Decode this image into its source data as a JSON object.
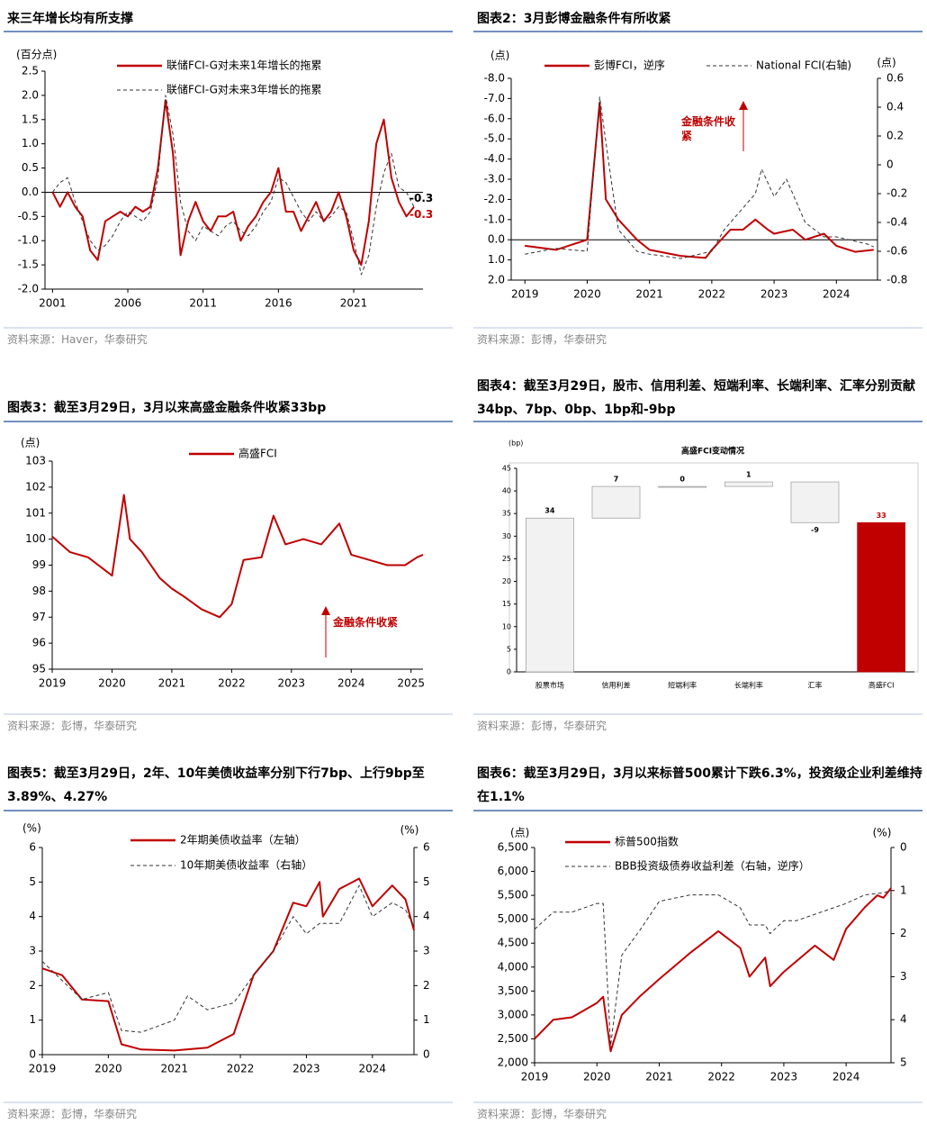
{
  "chart_data": [
    {
      "type": "line",
      "title": "来三年增长均有所支撑",
      "source": "资料来源：Haver，华泰研究",
      "ylabel": "(百分点)",
      "xlim": [
        2000.5,
        2025.6
      ],
      "xticks": [
        2001,
        2006,
        2011,
        2016,
        2021
      ],
      "ylim": [
        -2,
        2.5
      ],
      "yticks": [
        2.5,
        {
          "value": 2,
          "label": "2.0"
        },
        1.5,
        {
          "value": 1,
          "label": "1.0"
        },
        0.5,
        {
          "value": 0,
          "label": "0.0"
        },
        -0.5,
        {
          "value": -1,
          "label": "-1.0"
        },
        -1.5,
        {
          "value": -2,
          "label": "-2.0"
        }
      ],
      "zero_line": true,
      "x": [
        2001,
        2001.5,
        2002,
        2002.5,
        2003,
        2003.5,
        2004,
        2004.5,
        2005,
        2005.5,
        2006,
        2006.5,
        2007,
        2007.5,
        2008,
        2008.5,
        2009,
        2009.5,
        2010,
        2010.5,
        2011,
        2011.5,
        2012,
        2012.5,
        2013,
        2013.5,
        2014,
        2014.5,
        2015,
        2015.5,
        2016,
        2016.5,
        2017,
        2017.5,
        2018,
        2018.5,
        2019,
        2019.5,
        2020,
        2020.5,
        2021,
        2021.5,
        2022,
        2022.5,
        2023,
        2023.5,
        2024,
        2024.5,
        2025
      ],
      "series": [
        {
          "name": "联储FCI-G对未来1年增长的拖累",
          "color": "#c00000",
          "style": "solid",
          "values": [
            0,
            -0.3,
            0,
            -0.3,
            -0.5,
            -1.2,
            -1.4,
            -0.6,
            -0.5,
            -0.4,
            -0.5,
            -0.3,
            -0.4,
            -0.3,
            0.5,
            1.9,
            0.8,
            -1.3,
            -0.6,
            -0.2,
            -0.6,
            -0.8,
            -0.5,
            -0.5,
            -0.4,
            -1.0,
            -0.7,
            -0.5,
            -0.2,
            0,
            0.5,
            -0.4,
            -0.4,
            -0.8,
            -0.5,
            -0.2,
            -0.6,
            -0.4,
            0,
            -0.5,
            -1.2,
            -1.5,
            -0.6,
            1.0,
            1.5,
            0.3,
            -0.2,
            -0.5,
            -0.3
          ]
        },
        {
          "name": "联储FCI-G对未来3年增长的拖累",
          "color": "#333333",
          "style": "dashed",
          "values": [
            0,
            0.2,
            0.3,
            -0.2,
            -0.6,
            -1.0,
            -1.2,
            -1.1,
            -0.9,
            -0.6,
            -0.4,
            -0.5,
            -0.6,
            -0.4,
            0.3,
            2.0,
            1.2,
            -0.2,
            -0.8,
            -1.0,
            -0.7,
            -0.8,
            -0.9,
            -0.7,
            -0.6,
            -0.8,
            -0.9,
            -0.7,
            -0.4,
            -0.2,
            0.3,
            0.2,
            -0.1,
            -0.4,
            -0.6,
            -0.4,
            -0.6,
            -0.5,
            -0.3,
            -0.4,
            -1.0,
            -1.7,
            -1.3,
            -0.3,
            0.4,
            0.8,
            0.1,
            0,
            -0.3
          ]
        }
      ],
      "annotations": [
        {
          "text": "-0.3",
          "color": "#000000"
        },
        {
          "text": "-0.3",
          "color": "#c00000"
        }
      ]
    },
    {
      "type": "line",
      "title": "图表2：3月彭博金融条件有所收紧",
      "source": "资料来源：彭博，华泰研究",
      "ylabel": "(点)",
      "y2label": "(点)",
      "xlim": [
        2018.78,
        2024.66
      ],
      "xticks": [
        2019,
        2020,
        2021,
        2022,
        2023,
        2024
      ],
      "ylim": [
        -8,
        2
      ],
      "yreverse": true,
      "yticks": [
        {
          "value": -8,
          "label": "-8.0"
        },
        {
          "value": -7,
          "label": "-7.0"
        },
        {
          "value": -6,
          "label": "-6.0"
        },
        {
          "value": -5,
          "label": "-5.0"
        },
        {
          "value": -4,
          "label": "-4.0"
        },
        {
          "value": -3,
          "label": "-3.0"
        },
        {
          "value": -2,
          "label": "-2.0"
        },
        {
          "value": -1,
          "label": "-1.0"
        },
        {
          "value": 0,
          "label": "0.0"
        },
        {
          "value": 1,
          "label": "1.0"
        },
        {
          "value": 2,
          "label": "2.0"
        }
      ],
      "y2lim": [
        -0.8,
        0.6
      ],
      "y2ticks": [
        0.6,
        0.4,
        0.2,
        0,
        -0.2,
        -0.4,
        -0.6,
        -0.8
      ],
      "zero_line": true,
      "series": [
        {
          "name": "彭博FCI，逆序",
          "color": "#c00000",
          "style": "solid",
          "x": [
            2019,
            2019.5,
            2020,
            2020.2,
            2020.3,
            2020.5,
            2020.8,
            2021,
            2021.5,
            2021.9,
            2022,
            2022.3,
            2022.5,
            2022.7,
            2022.9,
            2023,
            2023.3,
            2023.5,
            2023.8,
            2024,
            2024.3,
            2024.6
          ],
          "values": [
            0.3,
            0.5,
            0,
            -6.8,
            -2.0,
            -1.0,
            0,
            0.5,
            0.8,
            0.9,
            0.5,
            -0.5,
            -0.5,
            -1.0,
            -0.5,
            -0.3,
            -0.5,
            0,
            -0.3,
            0.3,
            0.6,
            0.5
          ]
        },
        {
          "name": "National FCI(右轴)",
          "color": "#333333",
          "style": "dashed",
          "axis": "y2",
          "x": [
            2019,
            2019.5,
            2020,
            2020.2,
            2020.35,
            2020.5,
            2020.8,
            2021,
            2021.5,
            2022,
            2022.2,
            2022.5,
            2022.7,
            2022.8,
            2023,
            2023.2,
            2023.5,
            2023.8,
            2024,
            2024.5,
            2024.6
          ],
          "values": [
            -0.62,
            -0.58,
            -0.6,
            0.47,
            0,
            -0.45,
            -0.6,
            -0.62,
            -0.65,
            -0.6,
            -0.45,
            -0.3,
            -0.2,
            -0.03,
            -0.22,
            -0.1,
            -0.4,
            -0.5,
            -0.5,
            -0.55,
            -0.57
          ]
        }
      ],
      "annotations": [
        {
          "text": "金融条件收紧",
          "color": "#c00000"
        }
      ]
    },
    {
      "type": "line",
      "title": "图表3：截至3月29日，3月以来高盛金融条件收紧33bp",
      "source": "资料来源：彭博，华泰研究",
      "ylabel": "(点)",
      "xlim": [
        2019,
        2025.2
      ],
      "xticks": [
        2019,
        2020,
        2021,
        2022,
        2023,
        2024,
        2025
      ],
      "ylim": [
        95,
        103
      ],
      "yticks": [
        95,
        96,
        97,
        98,
        99,
        100,
        101,
        102,
        103
      ],
      "series": [
        {
          "name": "高盛FCI",
          "color": "#c00000",
          "style": "solid",
          "x": [
            2019,
            2019.3,
            2019.6,
            2020,
            2020.2,
            2020.3,
            2020.5,
            2020.8,
            2021,
            2021.2,
            2021.5,
            2021.8,
            2022,
            2022.2,
            2022.5,
            2022.7,
            2022.9,
            2023.2,
            2023.5,
            2023.8,
            2024,
            2024.3,
            2024.6,
            2024.9,
            2025.1,
            2025.2
          ],
          "values": [
            100.1,
            99.5,
            99.3,
            98.6,
            101.7,
            100,
            99.5,
            98.5,
            98.1,
            97.8,
            97.3,
            97.0,
            97.5,
            99.2,
            99.3,
            100.9,
            99.8,
            100.0,
            99.8,
            100.6,
            99.4,
            99.2,
            99.0,
            99.0,
            99.3,
            99.4
          ]
        }
      ],
      "annotations": [
        {
          "text": "金融条件收紧",
          "color": "#c00000"
        }
      ]
    },
    {
      "type": "waterfall",
      "title": "图表4：截至3月29日，股市、信用利差、短端利率、长端利率、汇率分别贡献34bp、7bp、0bp、1bp和-9bp",
      "source": "资料来源：彭博，华泰研究",
      "subtitle": "高盛FCI变动情况",
      "ylabel": "(bp)",
      "categories": [
        "股票市场",
        "信用利差",
        "短端利率",
        "长端利率",
        "汇率",
        "高盛FCI"
      ],
      "values": [
        34,
        7,
        0,
        1,
        -9,
        33
      ],
      "ylim": [
        0,
        45
      ],
      "yticks": [
        0,
        5,
        10,
        15,
        20,
        25,
        30,
        35,
        40,
        45
      ],
      "color": "#f2f2f2",
      "total_color": "#c00000"
    },
    {
      "type": "line",
      "title": "图表5：截至3月29日，2年、10年美债收益率分别下行7bp、上行9bp至3.89%、4.27%",
      "source": "资料来源：彭博，华泰研究",
      "ylabel": "(%)",
      "y2label": "(%)",
      "xlim": [
        2019,
        2024.63
      ],
      "xticks": [
        2019,
        2020,
        2021,
        2022,
        2023,
        2024
      ],
      "ylim": [
        0,
        6
      ],
      "yticks": [
        0,
        1,
        2,
        3,
        4,
        5,
        6
      ],
      "y2lim": [
        0,
        6
      ],
      "y2ticks": [
        0,
        1,
        2,
        3,
        4,
        5,
        6
      ],
      "series": [
        {
          "name": "2年期美债收益率（左轴）",
          "color": "#c00000",
          "style": "solid",
          "x": [
            2019,
            2019.3,
            2019.6,
            2020,
            2020.2,
            2020.5,
            2021,
            2021.5,
            2021.9,
            2022.2,
            2022.5,
            2022.8,
            2023,
            2023.2,
            2023.25,
            2023.5,
            2023.8,
            2024,
            2024.3,
            2024.5,
            2024.63
          ],
          "values": [
            2.5,
            2.3,
            1.6,
            1.55,
            0.3,
            0.15,
            0.12,
            0.2,
            0.6,
            2.3,
            3.0,
            4.4,
            4.3,
            5.0,
            4.0,
            4.8,
            5.1,
            4.3,
            4.9,
            4.5,
            3.6
          ]
        },
        {
          "name": "10年期美债收益率（右轴）",
          "color": "#333333",
          "style": "dashed",
          "axis": "y2",
          "x": [
            2019,
            2019.6,
            2020,
            2020.2,
            2020.5,
            2021,
            2021.2,
            2021.5,
            2021.9,
            2022.2,
            2022.5,
            2022.8,
            2023,
            2023.2,
            2023.5,
            2023.8,
            2024,
            2024.3,
            2024.5,
            2024.63
          ],
          "values": [
            2.7,
            1.6,
            1.8,
            0.7,
            0.65,
            1.0,
            1.7,
            1.3,
            1.5,
            2.3,
            3.0,
            4.0,
            3.5,
            3.8,
            3.8,
            4.9,
            4.0,
            4.4,
            4.2,
            3.7
          ]
        }
      ]
    },
    {
      "type": "line",
      "title": "图表6：截至3月29日，3月以来标普500累计下跌6.3%，投资级企业利差维持在1.1%",
      "source": "资料来源：彭博，华泰研究",
      "ylabel": "(点)",
      "y2label": "(%)",
      "xlim": [
        2019,
        2024.72
      ],
      "xticks": [
        2019,
        2020,
        2021,
        2022,
        2023,
        2024
      ],
      "ylim": [
        2000,
        6500
      ],
      "yticks": [
        {
          "value": 2000,
          "label": "2,000"
        },
        {
          "value": 2500,
          "label": "2,500"
        },
        {
          "value": 3000,
          "label": "3,000"
        },
        {
          "value": 3500,
          "label": "3,500"
        },
        {
          "value": 4000,
          "label": "4,000"
        },
        {
          "value": 4500,
          "label": "4,500"
        },
        {
          "value": 5000,
          "label": "5,000"
        },
        {
          "value": 5500,
          "label": "5,500"
        },
        {
          "value": 6000,
          "label": "6,000"
        },
        {
          "value": 6500,
          "label": "6,500"
        }
      ],
      "y2lim": [
        0,
        5
      ],
      "y2reverse": true,
      "y2ticks": [
        0,
        1,
        2,
        3,
        4,
        5
      ],
      "series": [
        {
          "name": "标普500指数",
          "color": "#c00000",
          "style": "solid",
          "x": [
            2019,
            2019.3,
            2019.6,
            2020,
            2020.1,
            2020.22,
            2020.4,
            2020.7,
            2021,
            2021.5,
            2021.95,
            2022.3,
            2022.45,
            2022.7,
            2022.78,
            2023,
            2023.5,
            2023.8,
            2024,
            2024.3,
            2024.5,
            2024.6,
            2024.72
          ],
          "values": [
            2500,
            2900,
            2950,
            3250,
            3380,
            2240,
            3000,
            3400,
            3750,
            4300,
            4750,
            4400,
            3800,
            4200,
            3600,
            3900,
            4450,
            4150,
            4800,
            5250,
            5500,
            5450,
            5650
          ]
        },
        {
          "name": "BBB投资级债券收益利差（右轴，逆序）",
          "color": "#333333",
          "style": "dashed",
          "axis": "y2",
          "x": [
            2019,
            2019.3,
            2019.6,
            2020,
            2020.1,
            2020.22,
            2020.4,
            2020.7,
            2021,
            2021.5,
            2021.95,
            2022.3,
            2022.45,
            2022.7,
            2022.78,
            2023,
            2023.2,
            2023.5,
            2023.8,
            2024,
            2024.3,
            2024.6,
            2024.72
          ],
          "values": [
            1.9,
            1.5,
            1.5,
            1.3,
            1.3,
            4.6,
            2.5,
            1.9,
            1.25,
            1.1,
            1.1,
            1.4,
            1.8,
            1.8,
            2.0,
            1.7,
            1.7,
            1.55,
            1.4,
            1.3,
            1.1,
            1.05,
            1.0
          ]
        }
      ]
    }
  ]
}
